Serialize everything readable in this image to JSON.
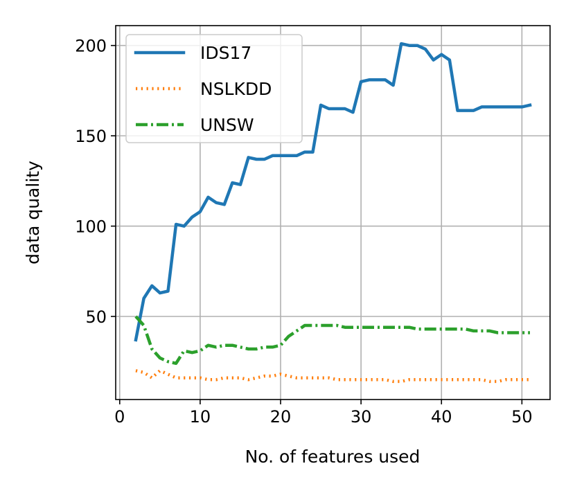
{
  "chart_data": {
    "type": "line",
    "xlabel": "No. of features used",
    "ylabel": "data quality",
    "xlim": [
      -0.5,
      53.5
    ],
    "ylim": [
      4,
      211
    ],
    "xticks": [
      0,
      10,
      20,
      30,
      40,
      50
    ],
    "yticks": [
      50,
      100,
      150,
      200
    ],
    "grid": true,
    "legend_position": "top-left",
    "series": [
      {
        "name": "IDS17",
        "color": "#1f77b4",
        "style": "solid",
        "x": [
          2,
          3,
          4,
          5,
          6,
          7,
          8,
          9,
          10,
          11,
          12,
          13,
          14,
          15,
          16,
          17,
          18,
          19,
          20,
          21,
          22,
          23,
          24,
          25,
          26,
          27,
          28,
          29,
          30,
          31,
          32,
          33,
          34,
          35,
          36,
          37,
          38,
          39,
          40,
          41,
          42,
          43,
          44,
          45,
          46,
          47,
          48,
          49,
          50,
          51
        ],
        "y": [
          37,
          60,
          67,
          63,
          64,
          101,
          100,
          105,
          108,
          116,
          113,
          112,
          124,
          123,
          138,
          137,
          137,
          139,
          139,
          139,
          139,
          141,
          141,
          167,
          165,
          165,
          165,
          163,
          180,
          181,
          181,
          181,
          178,
          201,
          200,
          200,
          198,
          192,
          195,
          192,
          164,
          164,
          164,
          166,
          166,
          166,
          166,
          166,
          166,
          167
        ]
      },
      {
        "name": "NSLKDD",
        "color": "#ff7f0e",
        "style": "dotted",
        "x": [
          2,
          3,
          4,
          5,
          6,
          7,
          8,
          9,
          10,
          11,
          12,
          13,
          14,
          15,
          16,
          17,
          18,
          19,
          20,
          21,
          22,
          23,
          24,
          25,
          26,
          27,
          28,
          29,
          30,
          31,
          32,
          33,
          34,
          35,
          36,
          37,
          38,
          39,
          40,
          41,
          42,
          43,
          44,
          45,
          46,
          47,
          48,
          49,
          50,
          51
        ],
        "y": [
          20,
          19,
          16,
          20,
          18,
          16,
          16,
          16,
          16,
          15,
          15,
          16,
          16,
          16,
          15,
          16,
          17,
          17,
          18,
          17,
          16,
          16,
          16,
          16,
          16,
          15,
          15,
          15,
          15,
          15,
          15,
          15,
          14,
          14,
          15,
          15,
          15,
          15,
          15,
          15,
          15,
          15,
          15,
          15,
          14,
          14,
          15,
          15,
          15,
          15
        ]
      },
      {
        "name": "UNSW",
        "color": "#2ca02c",
        "style": "dashdot",
        "x": [
          2,
          3,
          4,
          5,
          6,
          7,
          8,
          9,
          10,
          11,
          12,
          13,
          14,
          15,
          16,
          17,
          18,
          19,
          20,
          21,
          22,
          23,
          24,
          25,
          26,
          27,
          28,
          29,
          30,
          31,
          32,
          33,
          34,
          35,
          36,
          37,
          38,
          39,
          40,
          41,
          42,
          43,
          44,
          45,
          46,
          47,
          48,
          49,
          50,
          51
        ],
        "y": [
          50,
          45,
          32,
          27,
          25,
          24,
          31,
          30,
          31,
          34,
          33,
          34,
          34,
          33,
          32,
          32,
          33,
          33,
          34,
          39,
          42,
          45,
          45,
          45,
          45,
          45,
          44,
          44,
          44,
          44,
          44,
          44,
          44,
          44,
          44,
          43,
          43,
          43,
          43,
          43,
          43,
          43,
          42,
          42,
          42,
          41,
          41,
          41,
          41,
          41
        ]
      }
    ]
  }
}
